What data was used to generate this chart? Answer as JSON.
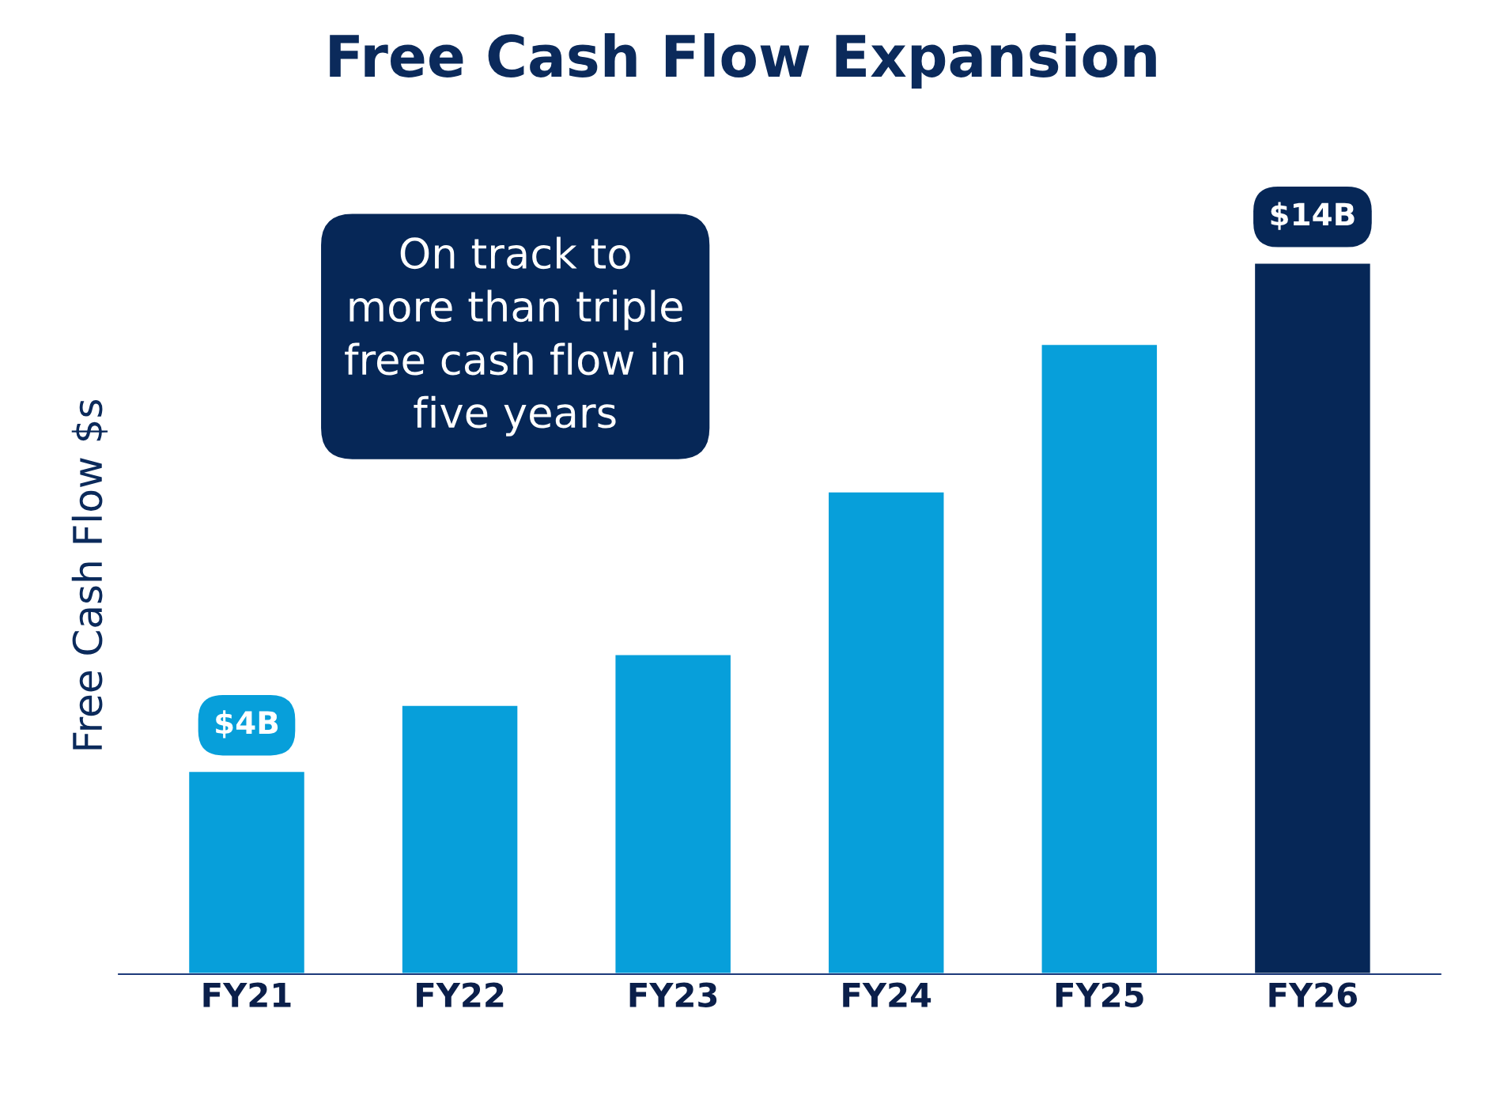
{
  "chart_data": {
    "type": "bar",
    "title": "Free Cash Flow Expansion",
    "ylabel": "Free Cash Flow $s",
    "categories": [
      "FY21",
      "FY22",
      "FY23",
      "FY24",
      "FY25",
      "FY26"
    ],
    "values": [
      4,
      5.3,
      6.3,
      9.5,
      12.4,
      14
    ],
    "colors": [
      "#079fda",
      "#079fda",
      "#079fda",
      "#079fda",
      "#079fda",
      "#062757"
    ],
    "value_labels": [
      "$4B",
      null,
      null,
      null,
      null,
      "$14B"
    ],
    "annotations": [
      "On track to\nmore than triple\nfree cash flow in\nfive years"
    ],
    "grid": false,
    "legend": false
  }
}
